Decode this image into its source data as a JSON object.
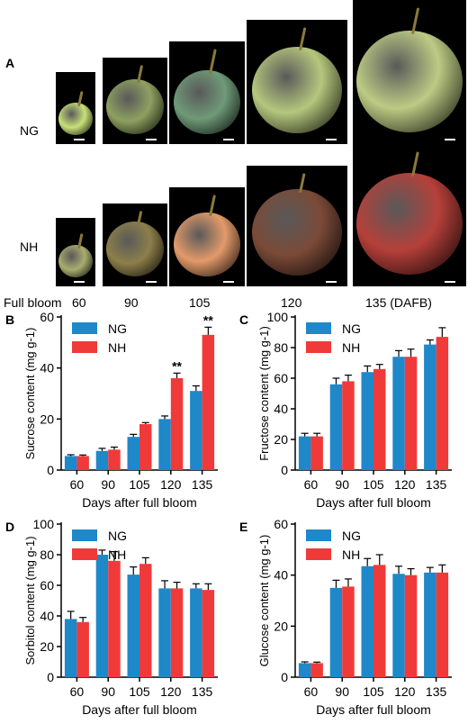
{
  "panel_a": {
    "letter": "A",
    "row_labels": [
      "NG",
      "NH"
    ],
    "timepoint_row_label": "Full bloom",
    "timepoints": [
      "60",
      "90",
      "105",
      "120",
      "135 (DAFB)"
    ],
    "colors": {
      "ng_fruit": [
        "#c8e07a",
        "#8ea060",
        "#6f9a78",
        "#b5c77d",
        "#bccb84"
      ],
      "nh_fruit": [
        "#a9ad6f",
        "#8d7f4a",
        "#e39a6a",
        "#7b4a38",
        "#b6403a"
      ]
    }
  },
  "chart_data": [
    {
      "panel": "B",
      "type": "bar",
      "ylabel": "Sucrose content (mg g-1)",
      "xlabel": "Days after full bloom",
      "categories": [
        "60",
        "90",
        "105",
        "120",
        "135"
      ],
      "ylim": [
        0,
        60
      ],
      "yticks": [
        0,
        20,
        40,
        60
      ],
      "series": [
        {
          "name": "NG",
          "color": "#1e88c9",
          "values": [
            5.5,
            7.5,
            13,
            20,
            31
          ],
          "errors": [
            0.5,
            1.0,
            1.0,
            1.2,
            2.0
          ]
        },
        {
          "name": "NH",
          "color": "#f03a3a",
          "values": [
            5.5,
            8,
            18,
            36,
            53
          ],
          "errors": [
            0.4,
            1.0,
            0.6,
            2.0,
            3.0
          ]
        }
      ],
      "annotations": [
        {
          "category": "120",
          "series": "NH",
          "text": "**"
        },
        {
          "category": "135",
          "series": "NH",
          "text": "**"
        }
      ]
    },
    {
      "panel": "C",
      "type": "bar",
      "ylabel": "Fructose content (mg g-1)",
      "xlabel": "Days after full bloom",
      "categories": [
        "60",
        "90",
        "105",
        "120",
        "135"
      ],
      "ylim": [
        0,
        100
      ],
      "yticks": [
        0,
        20,
        40,
        60,
        80,
        100
      ],
      "series": [
        {
          "name": "NG",
          "color": "#1e88c9",
          "values": [
            22,
            56,
            64,
            74,
            82
          ],
          "errors": [
            2,
            4,
            4,
            4,
            3
          ]
        },
        {
          "name": "NH",
          "color": "#f03a3a",
          "values": [
            22,
            58,
            66,
            74,
            87
          ],
          "errors": [
            2,
            4,
            3,
            5,
            6
          ]
        }
      ],
      "annotations": []
    },
    {
      "panel": "D",
      "type": "bar",
      "ylabel": "Sorbitol content (mg g-1)",
      "xlabel": "Days after full bloom",
      "categories": [
        "60",
        "90",
        "105",
        "120",
        "135"
      ],
      "ylim": [
        0,
        100
      ],
      "yticks": [
        0,
        20,
        40,
        60,
        80,
        100
      ],
      "series": [
        {
          "name": "NG",
          "color": "#1e88c9",
          "values": [
            38,
            80,
            67,
            58,
            58
          ],
          "errors": [
            5,
            3,
            5,
            5,
            3
          ]
        },
        {
          "name": "NH",
          "color": "#f03a3a",
          "values": [
            36,
            76,
            74,
            58,
            57
          ],
          "errors": [
            3,
            6,
            4,
            4,
            4
          ]
        }
      ],
      "annotations": []
    },
    {
      "panel": "E",
      "type": "bar",
      "ylabel": "Glucose content (mg g-1)",
      "xlabel": "Days after full bloom",
      "categories": [
        "60",
        "90",
        "105",
        "120",
        "135"
      ],
      "ylim": [
        0,
        60
      ],
      "yticks": [
        0,
        20,
        40,
        60
      ],
      "series": [
        {
          "name": "NG",
          "color": "#1e88c9",
          "values": [
            5.5,
            35,
            43.5,
            40.5,
            41
          ],
          "errors": [
            0.5,
            3,
            3,
            3,
            2
          ]
        },
        {
          "name": "NH",
          "color": "#f03a3a",
          "values": [
            5.5,
            35.5,
            44,
            40,
            41
          ],
          "errors": [
            0.4,
            3,
            4,
            2.5,
            3
          ]
        }
      ],
      "annotations": []
    }
  ]
}
